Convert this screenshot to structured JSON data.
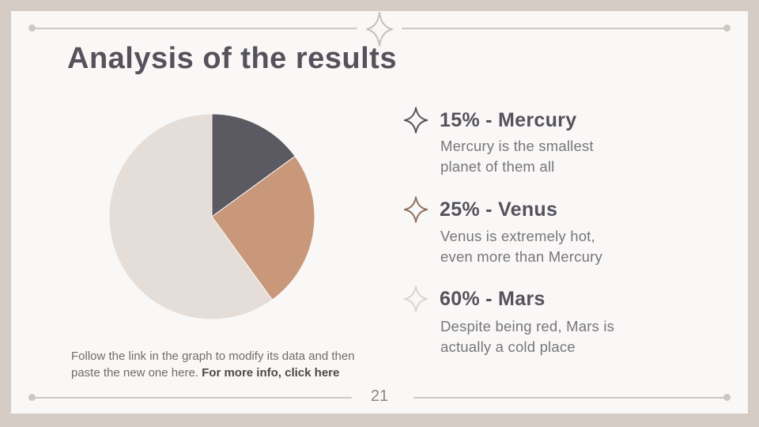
{
  "slide": {
    "title": "Analysis of the results",
    "page_number": "21"
  },
  "chart_data": {
    "type": "pie",
    "title": "",
    "categories": [
      "Mercury",
      "Venus",
      "Mars"
    ],
    "values": [
      15,
      25,
      60
    ],
    "colors": [
      "#5b5961",
      "#c9977a",
      "#e5ddd8"
    ],
    "start_angle_deg": 0,
    "direction": "clockwise",
    "legend_position": "right"
  },
  "legend": {
    "items": [
      {
        "heading": "15% - Mercury",
        "line1": "Mercury is the smallest",
        "line2": "planet of them all",
        "icon": "sparkle-icon",
        "icon_color": "#55525b"
      },
      {
        "heading": "25% - Venus",
        "line1": "Venus is extremely hot,",
        "line2": "even more than Mercury",
        "icon": "sparkle-icon",
        "icon_color": "#8e7260"
      },
      {
        "heading": "60% - Mars",
        "line1": "Despite being red, Mars is",
        "line2": "actually a cold place",
        "icon": "sparkle-icon",
        "icon_color": "#ddd3cb"
      }
    ]
  },
  "footer": {
    "note_regular": "Follow the link in the graph to modify its data and then paste the new one here. ",
    "note_bold": "For more info, click here"
  },
  "colors": {
    "frame": "#d5ccc6",
    "card": "#f9f8f6",
    "heading_text": "#55525c",
    "body_text": "#77757b",
    "decor_line": "#d0c7c0",
    "decor_star": "#c9bfb7",
    "footer_text": "#6f6d6c",
    "footer_bold": "#4b4a49",
    "page_number": "#8b8680"
  }
}
